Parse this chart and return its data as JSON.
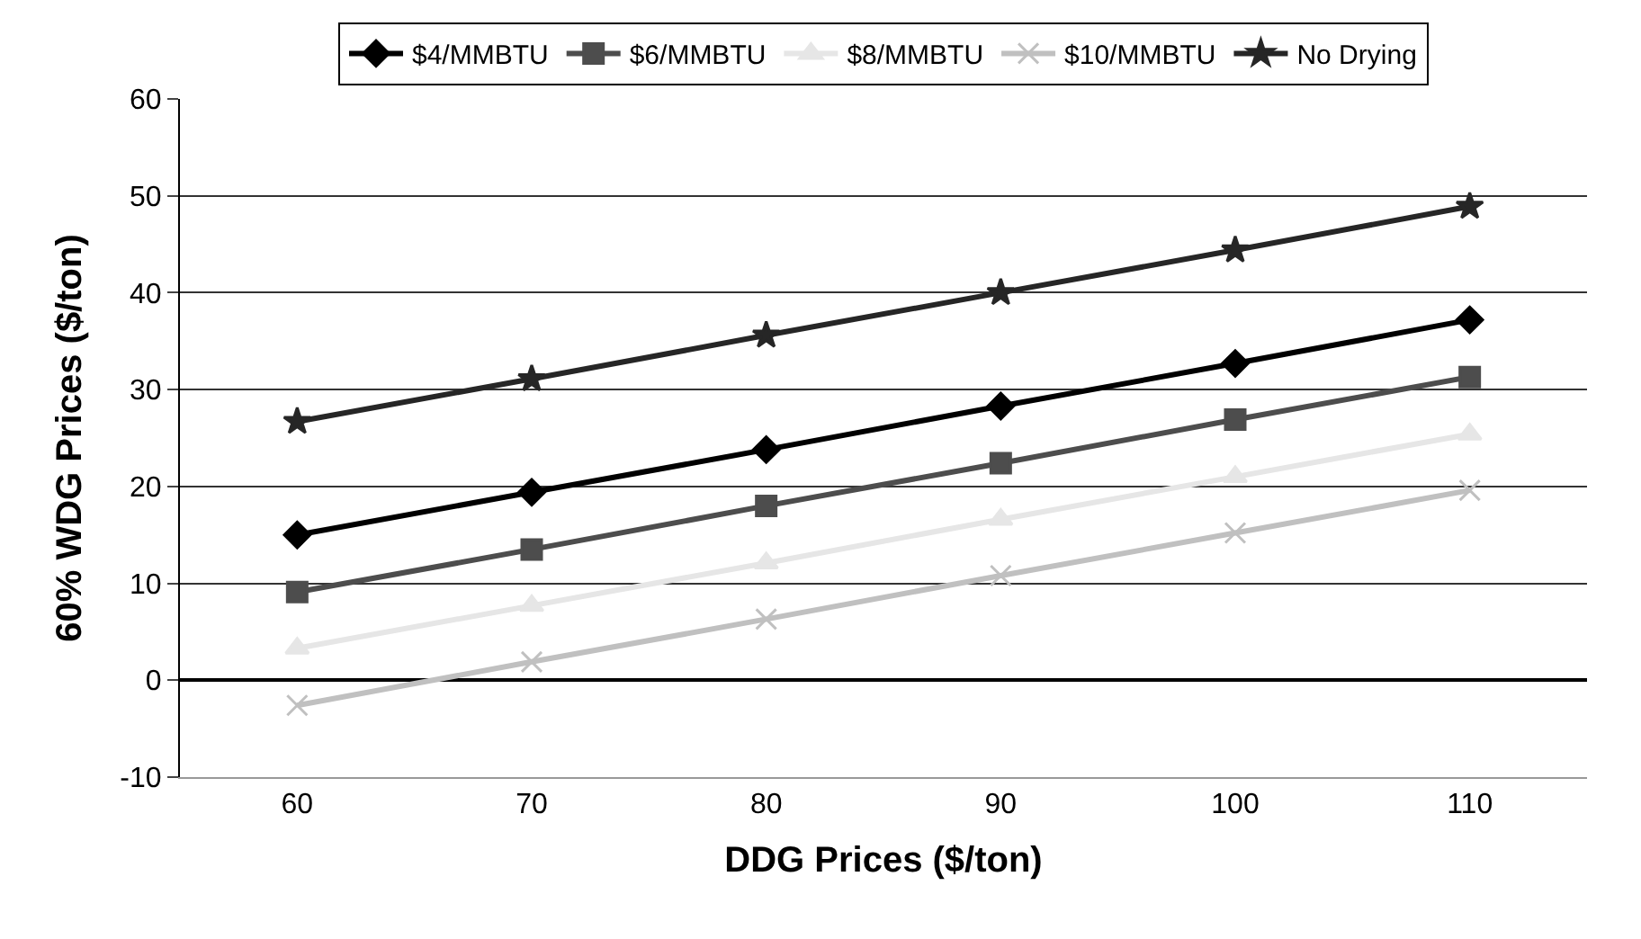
{
  "chart_data": {
    "type": "line",
    "xlabel": "DDG Prices ($/ton)",
    "ylabel": "60% WDG Prices ($/ton)",
    "categories": [
      "60",
      "70",
      "80",
      "90",
      "100",
      "110"
    ],
    "series": [
      {
        "name": "$4/MMBTU",
        "color": "#000000",
        "marker": "diamond",
        "values": [
          15.0,
          19.4,
          23.8,
          28.3,
          32.7,
          37.2
        ]
      },
      {
        "name": "$6/MMBTU",
        "color": "#4d4d4d",
        "marker": "square",
        "values": [
          9.1,
          13.5,
          18.0,
          22.4,
          26.9,
          31.3
        ]
      },
      {
        "name": "$8/MMBTU",
        "color": "#e6e6e6",
        "marker": "triangle",
        "values": [
          3.3,
          7.7,
          12.1,
          16.6,
          21.0,
          25.4
        ]
      },
      {
        "name": "$10/MMBTU",
        "color": "#c0c0c0",
        "marker": "cross",
        "values": [
          -2.6,
          1.9,
          6.3,
          10.8,
          15.2,
          19.6
        ]
      },
      {
        "name": "No Drying",
        "color": "#262626",
        "marker": "star",
        "values": [
          26.7,
          31.1,
          35.6,
          40.0,
          44.4,
          48.9
        ]
      }
    ],
    "ylim": [
      -10,
      60
    ],
    "yticks": [
      -10,
      0,
      10,
      20,
      30,
      40,
      50,
      60
    ],
    "grid": "y",
    "legend": "top"
  }
}
